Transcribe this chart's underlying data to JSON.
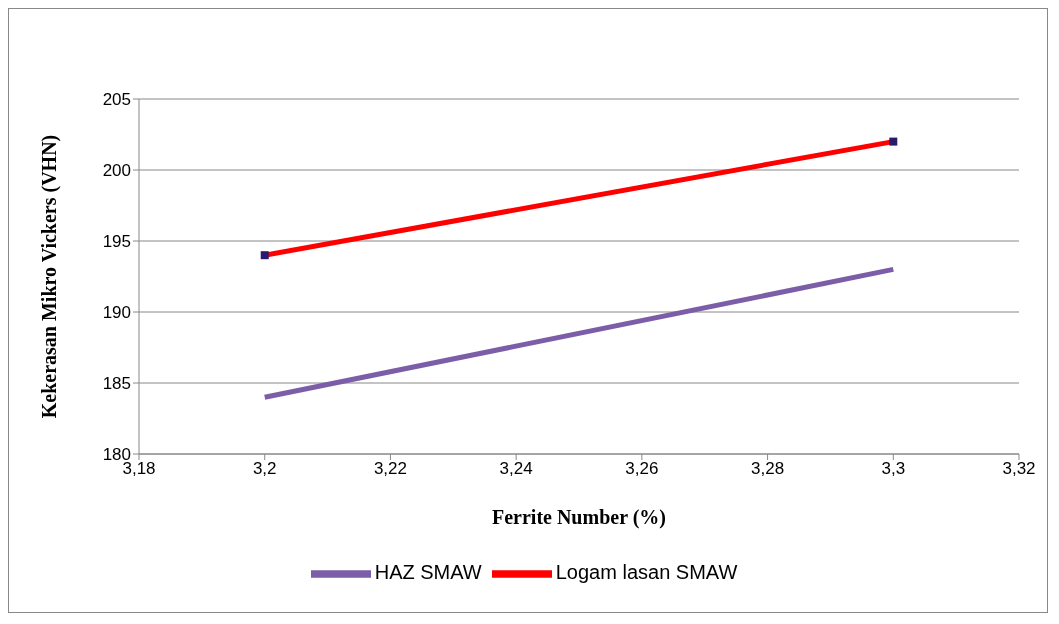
{
  "chart_data": {
    "type": "line",
    "xlabel": "Ferrite Number (%)",
    "ylabel": "Kekerasan Mikro Vickers (VHN)",
    "x": [
      3.2,
      3.3
    ],
    "series": [
      {
        "name": "Logam lasan SMAW",
        "color": "#ff0000",
        "values": [
          194,
          202
        ],
        "marker": "square"
      },
      {
        "name": "HAZ SMAW",
        "color": "#7b5ea7",
        "values": [
          184,
          193
        ],
        "marker": "none"
      }
    ],
    "xlim": [
      3.18,
      3.32
    ],
    "xticks": [
      {
        "value": 3.18,
        "label": "3,18"
      },
      {
        "value": 3.2,
        "label": "3,2"
      },
      {
        "value": 3.22,
        "label": "3,22"
      },
      {
        "value": 3.24,
        "label": "3,24"
      },
      {
        "value": 3.26,
        "label": "3,26"
      },
      {
        "value": 3.28,
        "label": "3,28"
      },
      {
        "value": 3.3,
        "label": "3,3"
      },
      {
        "value": 3.32,
        "label": "3,32"
      }
    ],
    "ylim": [
      180,
      205
    ],
    "yticks": [
      180,
      185,
      190,
      195,
      200,
      205
    ],
    "grid": "y",
    "legend": "bottom",
    "line_style": "solid"
  }
}
